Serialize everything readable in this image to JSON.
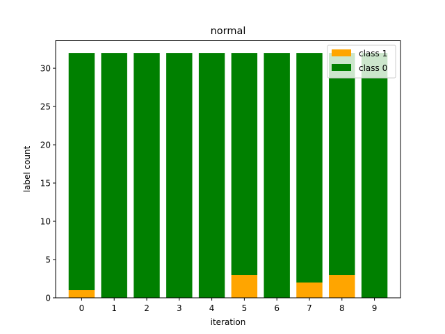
{
  "chart_data": {
    "type": "bar",
    "stacked": true,
    "title": "normal",
    "xlabel": "iteration",
    "ylabel": "label count",
    "categories": [
      "0",
      "1",
      "2",
      "3",
      "4",
      "5",
      "6",
      "7",
      "8",
      "9"
    ],
    "series": [
      {
        "name": "class 1",
        "color": "#ffa500",
        "values": [
          1,
          0,
          0,
          0,
          0,
          3,
          0,
          2,
          3,
          0
        ]
      },
      {
        "name": "class 0",
        "color": "#008000",
        "values": [
          31,
          32,
          32,
          32,
          32,
          29,
          32,
          30,
          29,
          32
        ]
      }
    ],
    "ylim": [
      0,
      33.6
    ],
    "yticks": [
      0,
      5,
      10,
      15,
      20,
      25,
      30
    ],
    "legend": {
      "position": "upper right",
      "entries": [
        "class 1",
        "class 0"
      ]
    },
    "grid": false
  }
}
